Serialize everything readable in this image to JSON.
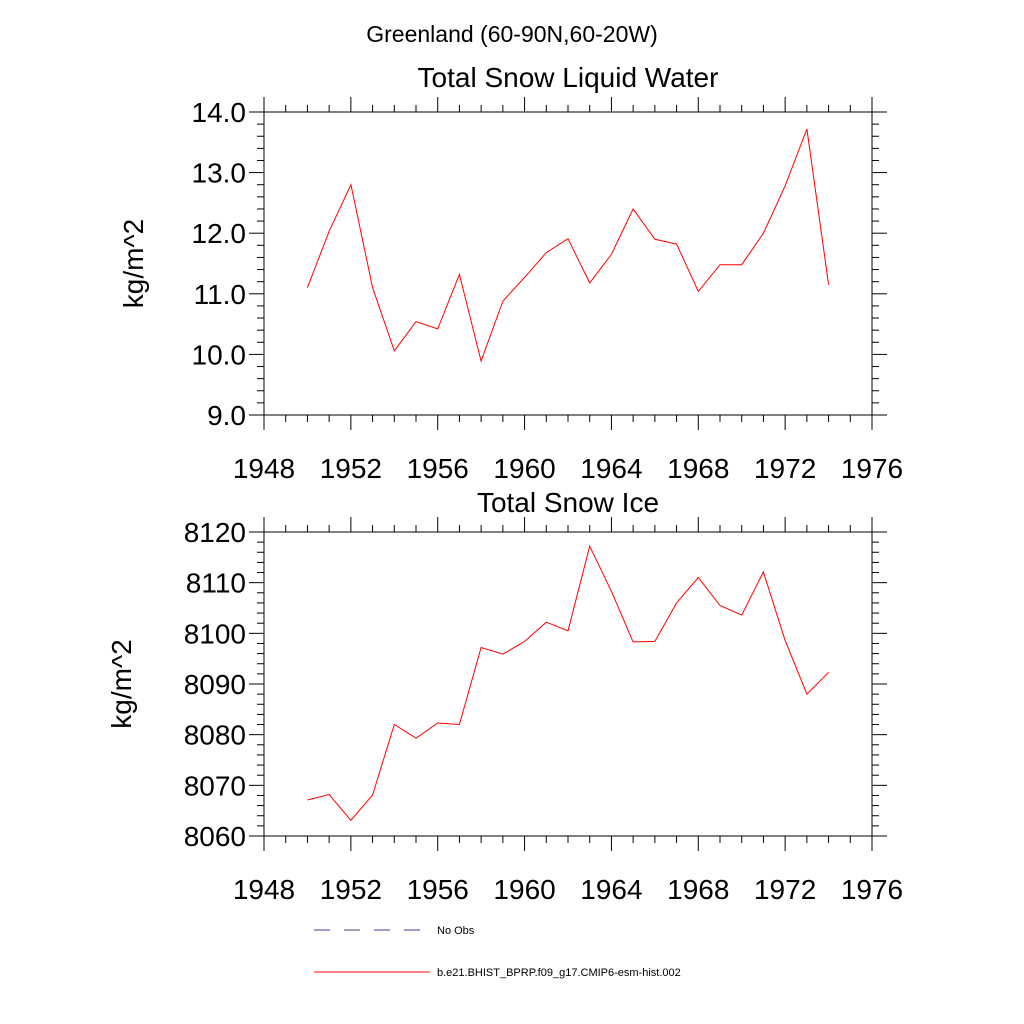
{
  "figure_title": "Greenland (60-90N,60-20W)",
  "chart_data": [
    {
      "type": "line",
      "title": "Total Snow Liquid Water",
      "ylabel": "kg/m^2",
      "xlabel": "",
      "xlim": [
        1948,
        1976
      ],
      "ylim": [
        9.0,
        14.0
      ],
      "x_ticks": [
        "1948",
        "1952",
        "1956",
        "1960",
        "1964",
        "1968",
        "1972",
        "1976"
      ],
      "y_ticks": [
        "9.0",
        "10.0",
        "11.0",
        "12.0",
        "13.0",
        "14.0"
      ],
      "x": [
        1950,
        1951,
        1952,
        1953,
        1954,
        1955,
        1956,
        1957,
        1958,
        1959,
        1960,
        1961,
        1962,
        1963,
        1964,
        1965,
        1966,
        1967,
        1968,
        1969,
        1970,
        1971,
        1972,
        1973,
        1974
      ],
      "series": [
        {
          "name": "b.e21.BHIST_BPRP.f09_g17.CMIP6-esm-hist.002",
          "color": "#ff0000",
          "values": [
            11.1,
            12.03,
            12.8,
            11.1,
            10.06,
            10.54,
            10.42,
            11.32,
            9.89,
            10.88,
            11.27,
            11.68,
            11.91,
            11.18,
            11.65,
            12.4,
            11.9,
            11.82,
            11.04,
            11.48,
            11.48,
            12.0,
            12.78,
            13.72,
            11.15
          ]
        }
      ]
    },
    {
      "type": "line",
      "title": "Total Snow Ice",
      "ylabel": "kg/m^2",
      "xlabel": "",
      "xlim": [
        1948,
        1976
      ],
      "ylim": [
        8060,
        8120
      ],
      "x_ticks": [
        "1948",
        "1952",
        "1956",
        "1960",
        "1964",
        "1968",
        "1972",
        "1976"
      ],
      "y_ticks": [
        "8060",
        "8070",
        "8080",
        "8090",
        "8100",
        "8110",
        "8120"
      ],
      "x": [
        1950,
        1951,
        1952,
        1953,
        1954,
        1955,
        1956,
        1957,
        1958,
        1959,
        1960,
        1961,
        1962,
        1963,
        1964,
        1965,
        1966,
        1967,
        1968,
        1969,
        1970,
        1971,
        1972,
        1973,
        1974
      ],
      "series": [
        {
          "name": "b.e21.BHIST_BPRP.f09_g17.CMIP6-esm-hist.002",
          "color": "#ff0000",
          "values": [
            8067.1,
            8068.2,
            8063.1,
            8068.1,
            8082.0,
            8079.3,
            8082.3,
            8082.0,
            8097.2,
            8095.9,
            8098.4,
            8102.2,
            8100.5,
            8117.2,
            8108.3,
            8098.3,
            8098.4,
            8106.0,
            8111.0,
            8105.5,
            8103.6,
            8112.1,
            8098.6,
            8088.0,
            8092.3
          ]
        }
      ]
    }
  ],
  "legend": [
    {
      "label": "No Obs",
      "color": "#3a3a9a",
      "style": "dashed"
    },
    {
      "label": "b.e21.BHIST_BPRP.f09_g17.CMIP6-esm-hist.002",
      "color": "#ff0000",
      "style": "solid"
    }
  ]
}
